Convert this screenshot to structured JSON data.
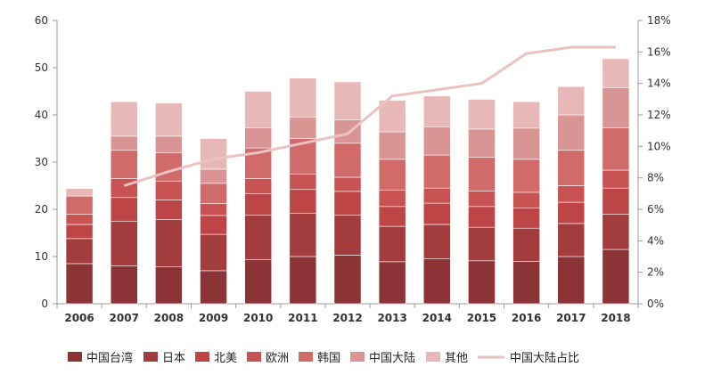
{
  "chart_data": {
    "type": "bar",
    "stacked": true,
    "categories": [
      "2006",
      "2007",
      "2008",
      "2009",
      "2010",
      "2011",
      "2012",
      "2013",
      "2014",
      "2015",
      "2016",
      "2017",
      "2018"
    ],
    "series": [
      {
        "name": "中国台湾",
        "color": "#8b3335",
        "values": [
          8.5,
          8.0,
          7.8,
          7.0,
          9.3,
          10.0,
          10.3,
          8.9,
          9.5,
          9.1,
          9.0,
          10.0,
          11.5
        ]
      },
      {
        "name": "日本",
        "color": "#a33d3d",
        "values": [
          5.3,
          9.5,
          10.0,
          7.7,
          9.5,
          9.2,
          8.5,
          7.5,
          7.3,
          7.1,
          7.0,
          7.0,
          7.5
        ]
      },
      {
        "name": "北美",
        "color": "#bd4546",
        "values": [
          3.0,
          5.0,
          4.2,
          4.0,
          4.5,
          5.0,
          5.0,
          4.2,
          4.5,
          4.4,
          4.3,
          4.5,
          5.5
        ]
      },
      {
        "name": "欧洲",
        "color": "#c85352",
        "values": [
          2.2,
          4.0,
          4.0,
          2.5,
          3.2,
          3.3,
          3.0,
          3.5,
          3.2,
          3.3,
          3.3,
          3.5,
          3.8
        ]
      },
      {
        "name": "韩国",
        "color": "#d06b69",
        "values": [
          3.8,
          6.0,
          6.0,
          4.3,
          6.5,
          7.5,
          7.2,
          6.5,
          7.0,
          7.1,
          7.0,
          7.5,
          9.0
        ]
      },
      {
        "name": "中国大陆",
        "color": "#d99594",
        "values": [
          0.0,
          3.0,
          3.5,
          3.0,
          4.3,
          4.5,
          5.0,
          5.8,
          6.0,
          6.0,
          6.6,
          7.5,
          8.5
        ]
      },
      {
        "name": "其他",
        "color": "#e8b8b8",
        "values": [
          1.6,
          7.3,
          7.0,
          6.5,
          7.7,
          8.3,
          8.0,
          6.7,
          6.5,
          6.3,
          5.6,
          6.0,
          6.1
        ]
      }
    ],
    "line": {
      "name": "中国大陆占比",
      "color": "#ebc1c1",
      "values": [
        null,
        7.5,
        8.4,
        9.2,
        9.6,
        10.2,
        10.8,
        13.2,
        13.6,
        14.0,
        15.9,
        16.3,
        16.3
      ]
    },
    "ylim": [
      0,
      60
    ],
    "yticks": [
      0,
      10,
      20,
      30,
      40,
      50,
      60
    ],
    "y2lim": [
      0,
      18
    ],
    "y2ticks": [
      "0%",
      "2%",
      "4%",
      "6%",
      "8%",
      "10%",
      "12%",
      "14%",
      "16%",
      "18%"
    ],
    "legend": "bottom",
    "grid": false
  }
}
